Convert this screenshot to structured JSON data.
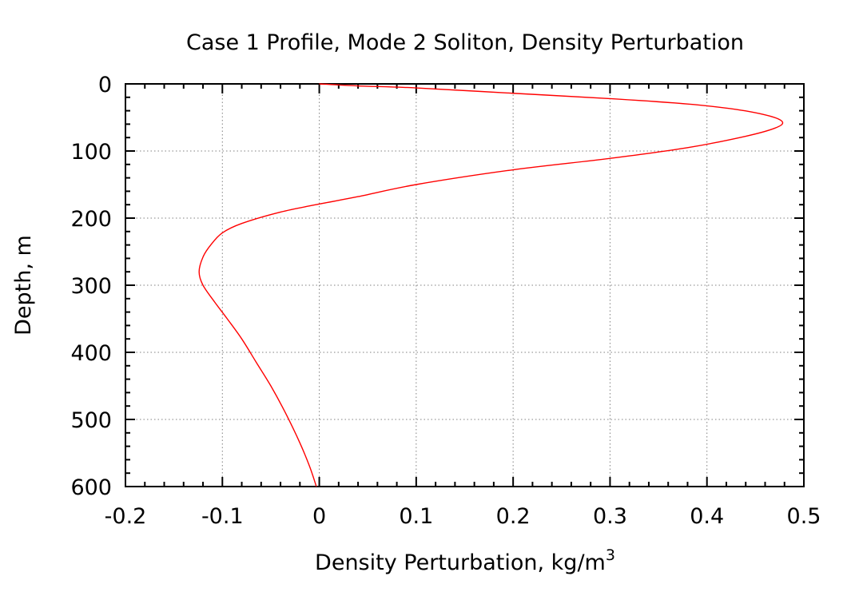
{
  "chart_data": {
    "type": "line",
    "title": "Case 1 Profile, Mode 2 Soliton, Density Perturbation",
    "xlabel": "Density Perturbation, kg/m",
    "xlabel_superscript": "3",
    "ylabel": "Depth, m",
    "xlim": [
      -0.2,
      0.5
    ],
    "ylim": [
      600,
      0
    ],
    "y_inverted": true,
    "x_ticks": [
      "-0.2",
      "-0.1",
      "0",
      "0.1",
      "0.2",
      "0.3",
      "0.4",
      "0.5"
    ],
    "y_ticks": [
      "0",
      "100",
      "200",
      "300",
      "400",
      "500",
      "600"
    ],
    "grid": true,
    "legend": "none",
    "series": [
      {
        "color": "#ff0000",
        "points": [
          [
            0.0,
            0
          ],
          [
            0.04,
            3
          ],
          [
            0.1,
            6
          ],
          [
            0.2,
            14
          ],
          [
            0.3,
            22
          ],
          [
            0.38,
            30
          ],
          [
            0.43,
            38
          ],
          [
            0.465,
            48
          ],
          [
            0.478,
            57
          ],
          [
            0.47,
            66
          ],
          [
            0.44,
            78
          ],
          [
            0.38,
            95
          ],
          [
            0.3,
            111
          ],
          [
            0.2,
            128
          ],
          [
            0.1,
            150
          ],
          [
            0.04,
            168
          ],
          [
            0.0,
            179
          ],
          [
            -0.04,
            191
          ],
          [
            -0.08,
            208
          ],
          [
            -0.1,
            222
          ],
          [
            -0.112,
            240
          ],
          [
            -0.12,
            258
          ],
          [
            -0.124,
            280
          ],
          [
            -0.12,
            300
          ],
          [
            -0.108,
            325
          ],
          [
            -0.095,
            350
          ],
          [
            -0.08,
            380
          ],
          [
            -0.065,
            415
          ],
          [
            -0.05,
            450
          ],
          [
            -0.035,
            490
          ],
          [
            -0.02,
            535
          ],
          [
            -0.01,
            570
          ],
          [
            -0.003,
            600
          ]
        ]
      }
    ]
  }
}
